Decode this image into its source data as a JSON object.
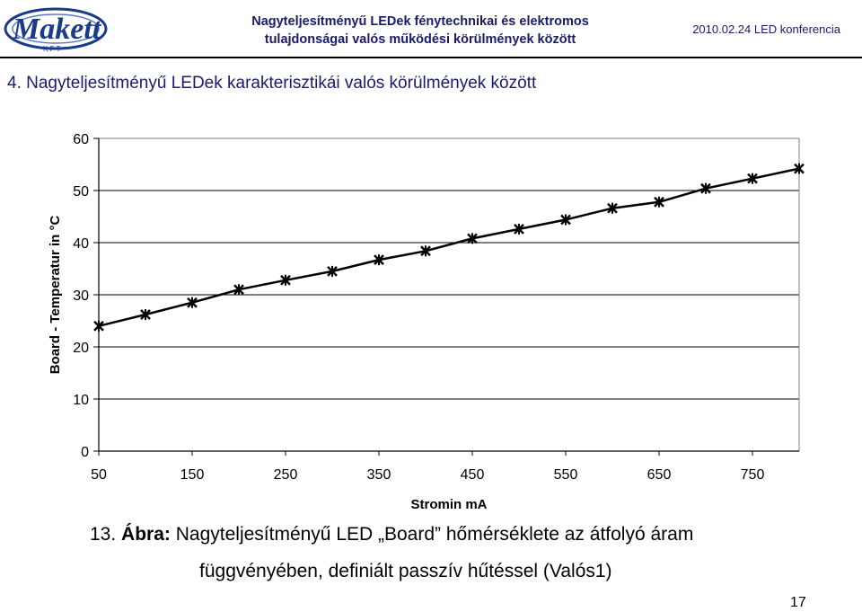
{
  "header": {
    "logo_text": "Makett",
    "logo_sub": "K F T",
    "title_line1": "Nagyteljesítményű LEDek fénytechnikai és elektromos",
    "title_line2": "tulajdonságai valós működési körülmények között",
    "date": "2010.02.24 LED konferencia"
  },
  "section_title": "4. Nagyteljesítményű LEDek karakterisztikái valós körülmények között",
  "chart_data": {
    "type": "line",
    "xlabel": "Stromin mA",
    "ylabel": "Board - Temperatur in °C",
    "xlim": [
      50,
      800
    ],
    "ylim": [
      0,
      60
    ],
    "x_ticks": [
      50,
      150,
      250,
      350,
      450,
      550,
      650,
      750
    ],
    "y_ticks": [
      0,
      10,
      20,
      30,
      40,
      50,
      60
    ],
    "grid": "horizontal",
    "series": [
      {
        "x": [
          50,
          100,
          150,
          200,
          250,
          300,
          350,
          400,
          450,
          500,
          550,
          600,
          650,
          700,
          750,
          800
        ],
        "values": [
          24.0,
          26.2,
          28.5,
          31.0,
          32.8,
          34.5,
          36.7,
          38.4,
          40.8,
          42.6,
          44.4,
          46.6,
          47.8,
          50.4,
          52.3,
          54.2
        ],
        "color": "#000000",
        "marker": "cross"
      }
    ]
  },
  "caption": {
    "number": "13.",
    "label": "Ábra:",
    "line1_text": "Nagyteljesítményű LED „Board” hőmérséklete az átfolyó áram",
    "line2": "függvényében, definiált passzív hűtéssel (Valós1)"
  },
  "page_number": "17"
}
